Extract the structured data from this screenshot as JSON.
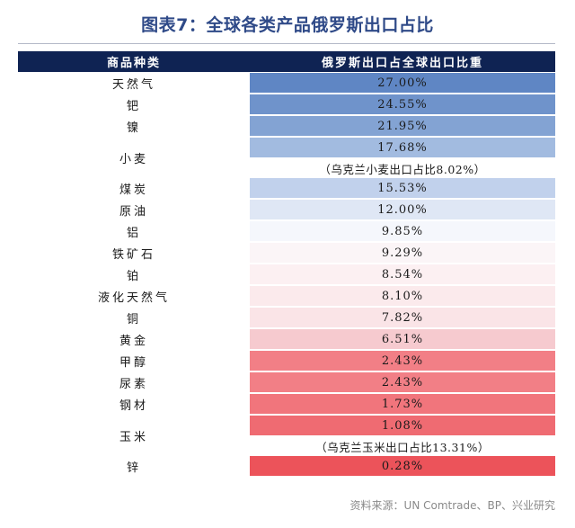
{
  "title": "图表7：全球各类产品俄罗斯出口占比",
  "table": {
    "headers": [
      "商品种类",
      "俄罗斯出口占全球出口比重"
    ],
    "rows": [
      {
        "name": "天然气",
        "value": "27.00%",
        "color": "#5f86c4"
      },
      {
        "name": "钯",
        "value": "24.55%",
        "color": "#6f93cb"
      },
      {
        "name": "镍",
        "value": "21.95%",
        "color": "#83a3d3"
      },
      {
        "name": "小麦",
        "value": "17.68%",
        "color": "#a2bbe0",
        "note": "（乌克兰小麦出口占比8.02%）"
      },
      {
        "name": "煤炭",
        "value": "15.53%",
        "color": "#c1d1ec"
      },
      {
        "name": "原油",
        "value": "12.00%",
        "color": "#dfe7f5"
      },
      {
        "name": "铝",
        "value": "9.85%",
        "color": "#f5f7fc"
      },
      {
        "name": "铁矿石",
        "value": "9.29%",
        "color": "#fbf5f7"
      },
      {
        "name": "铂",
        "value": "8.54%",
        "color": "#fcf0f2"
      },
      {
        "name": "液化天然气",
        "value": "8.10%",
        "color": "#fbeaec"
      },
      {
        "name": "铜",
        "value": "7.82%",
        "color": "#fae4e7"
      },
      {
        "name": "黄金",
        "value": "6.51%",
        "color": "#f6cacf"
      },
      {
        "name": "甲醇",
        "value": "2.43%",
        "color": "#f27f86"
      },
      {
        "name": "尿素",
        "value": "2.43%",
        "color": "#f27f86"
      },
      {
        "name": "钢材",
        "value": "1.73%",
        "color": "#f1757c"
      },
      {
        "name": "玉米",
        "value": "1.08%",
        "color": "#ef6b72",
        "note": "（乌克兰玉米出口占比13.31%）"
      },
      {
        "name": "锌",
        "value": "0.28%",
        "color": "#ec535a"
      }
    ]
  },
  "source": "资料来源：UN Comtrade、BP、兴业研究"
}
